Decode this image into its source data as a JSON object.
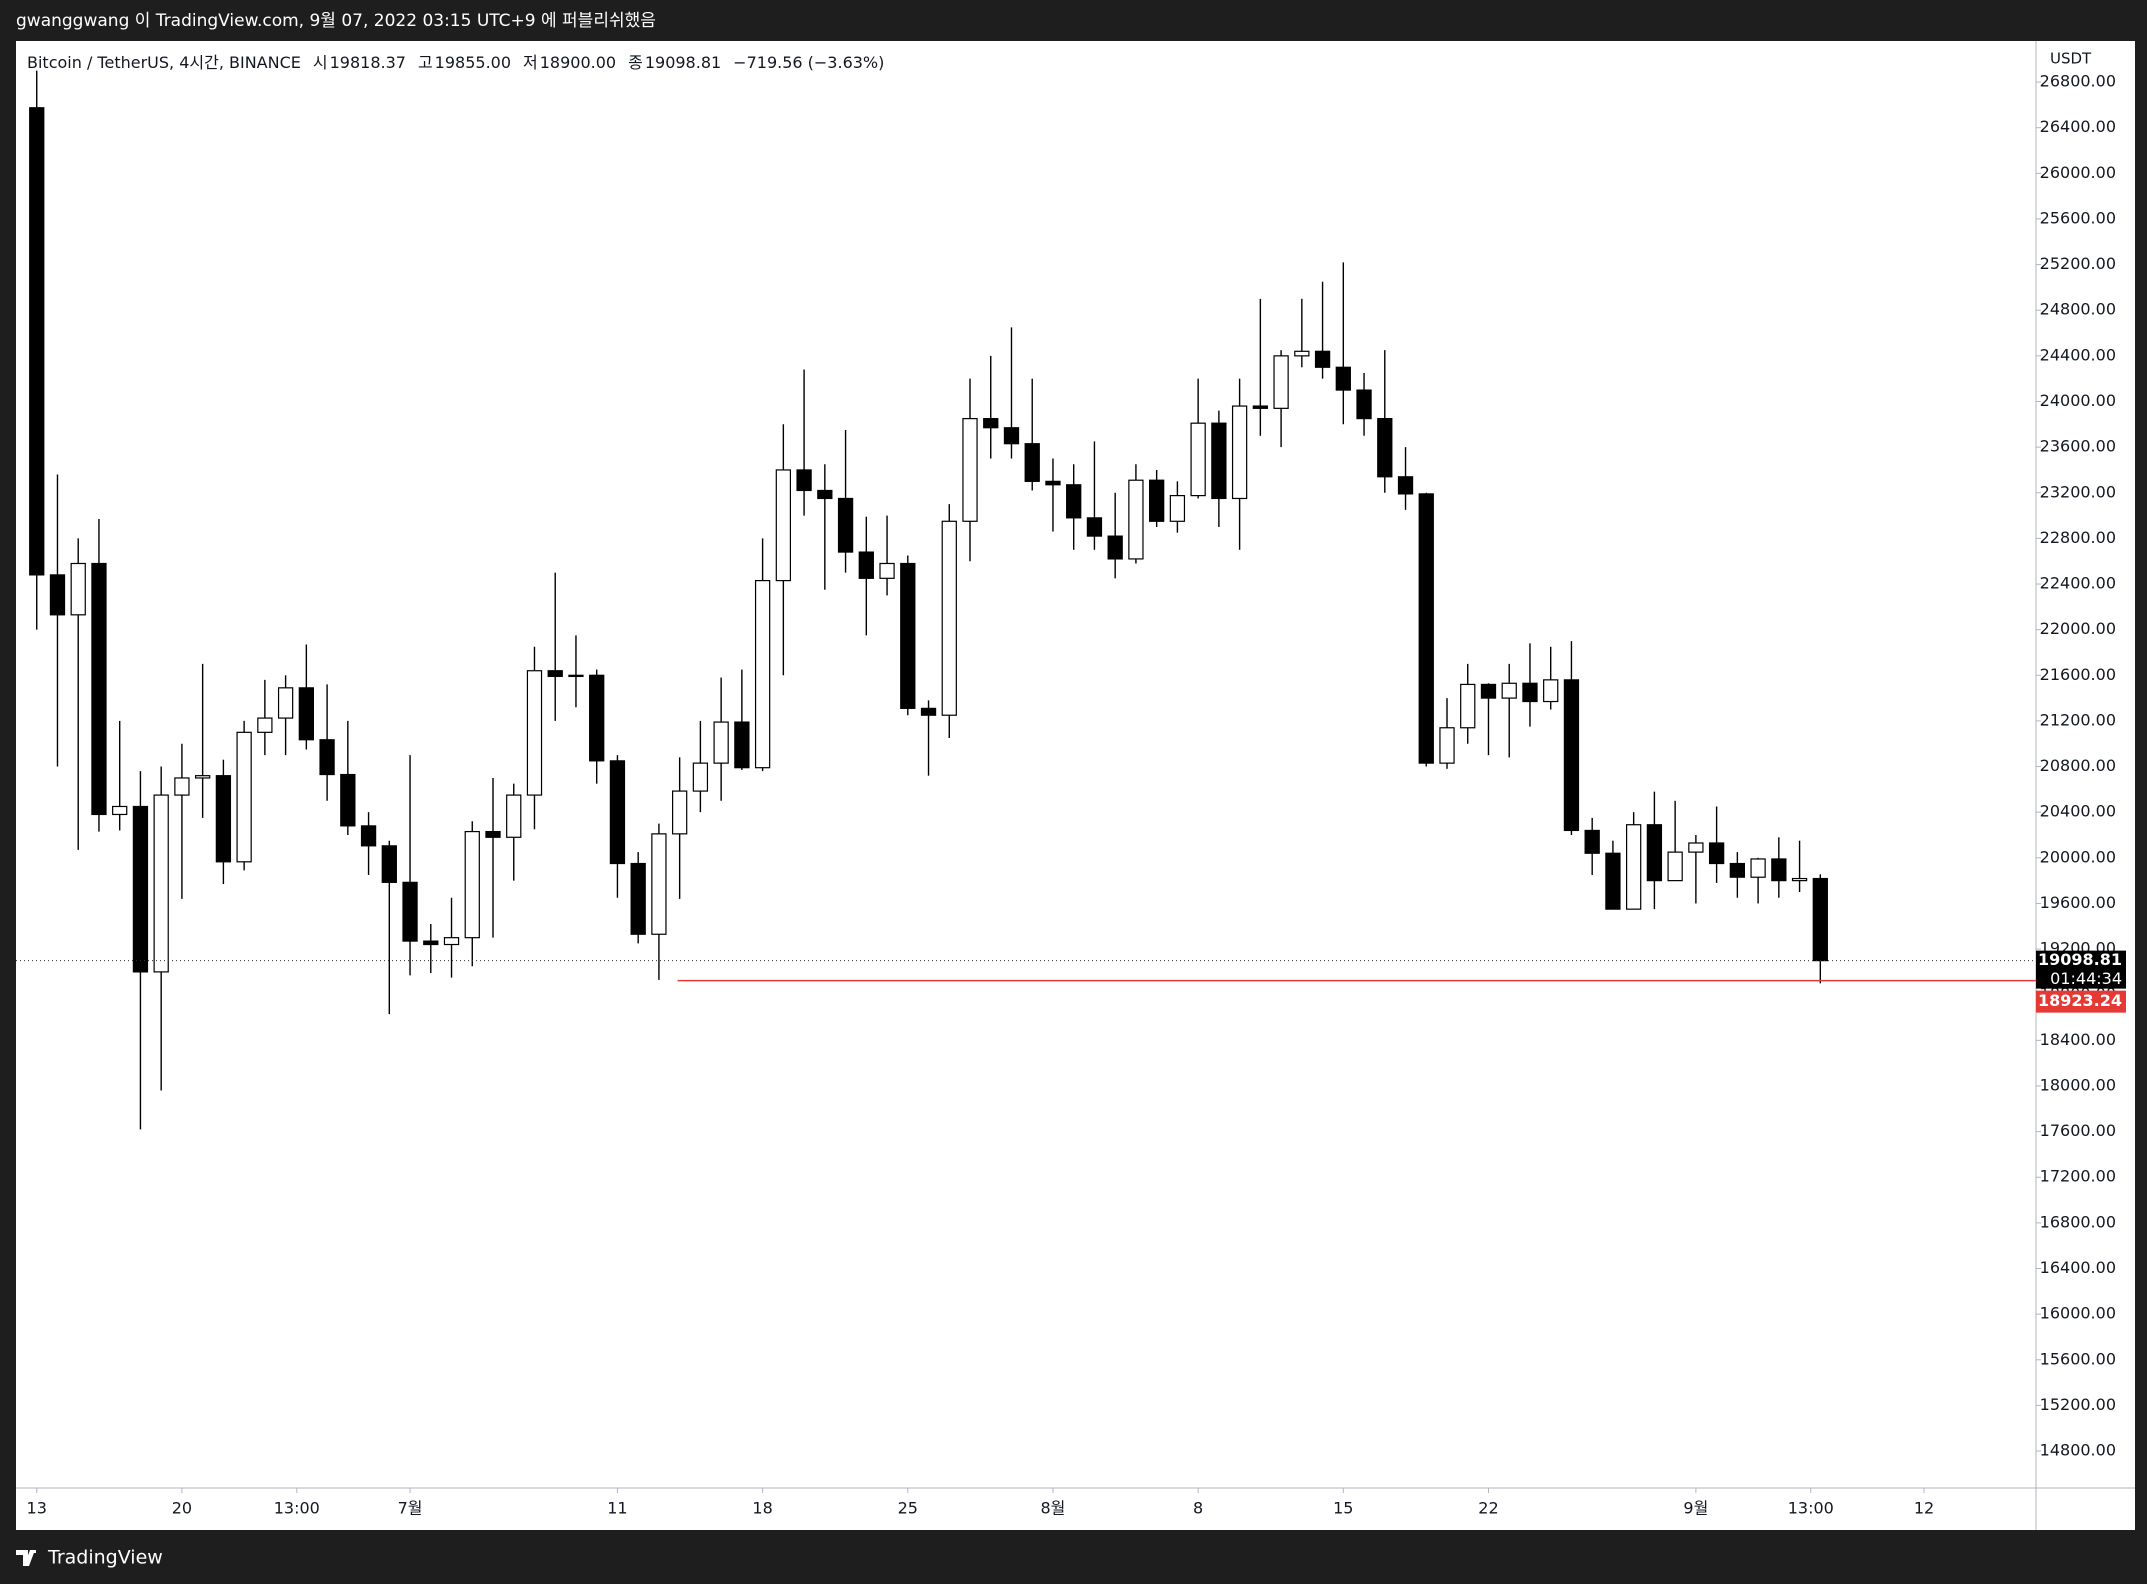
{
  "header": {
    "title": "gwanggwang 이 TradingView.com, 9월 07, 2022 03:15 UTC+9 에 퍼블리쉬했음"
  },
  "footer": {
    "brand": "TradingView"
  },
  "chart_data": {
    "type": "candlestick",
    "legend": [
      "Bitcoin / TetherUS, 4시간, BINANCE",
      "시",
      "19818.37",
      "고",
      "19855.00",
      "저",
      "18900.00",
      "종",
      "19098.81",
      "−719.56 (−3.63%)"
    ],
    "unit": "USDT",
    "countdown": "01:44:34",
    "up_color": "#ffffff",
    "down_color": "#000000",
    "wick_color": "#000000",
    "hline": {
      "value": 18923.24,
      "from_x": 30.9,
      "color": "#e53935"
    },
    "x": [
      0,
      1,
      2,
      3,
      4,
      5,
      6,
      7,
      8,
      9,
      10,
      11,
      12,
      13,
      14,
      15,
      16,
      17,
      18,
      19,
      20,
      21,
      22,
      23,
      24,
      25,
      26,
      27,
      28,
      29,
      30,
      31,
      32,
      33,
      34,
      35,
      36,
      37,
      38,
      39,
      40,
      41,
      42,
      43,
      44,
      45,
      46,
      47,
      48,
      49,
      50,
      51,
      52,
      53,
      54,
      55,
      56,
      57,
      58,
      59,
      60,
      61,
      62,
      63,
      64,
      65,
      66,
      67,
      68,
      69,
      70,
      71,
      72,
      73,
      74,
      75,
      76,
      77,
      78,
      79,
      80,
      81,
      82,
      83,
      84,
      85,
      86
    ],
    "open": [
      26575,
      22480,
      22130,
      22580,
      20380,
      20450,
      19000,
      20550,
      20700,
      20720,
      19965,
      21100,
      21225,
      21490,
      21035,
      20730,
      20280,
      20105,
      19785,
      19270,
      19240,
      19300,
      20230,
      20180,
      20550,
      21640,
      21590,
      21600,
      20850,
      19950,
      19330,
      20210,
      20585,
      20830,
      21190,
      20790,
      22430,
      23400,
      23220,
      23150,
      22680,
      22450,
      22580,
      21310,
      21250,
      22950,
      23850,
      23770,
      23630,
      23300,
      23270,
      22980,
      22820,
      22620,
      23310,
      22950,
      23175,
      23810,
      23150,
      23960,
      23940,
      24400,
      24440,
      24300,
      24100,
      23850,
      23340,
      23190,
      20830,
      21140,
      21520,
      21400,
      21530,
      21370,
      21560,
      20240,
      20040,
      19550,
      20290,
      19800,
      20050,
      20130,
      19950,
      19830,
      19990,
      19800,
      19818.37
    ],
    "high": [
      26900,
      23360,
      22800,
      22970,
      21200,
      20760,
      20800,
      21000,
      21700,
      20860,
      21200,
      21560,
      21600,
      21870,
      21520,
      21200,
      20400,
      20150,
      20900,
      19420,
      19650,
      20320,
      20700,
      20650,
      21850,
      22500,
      21950,
      21650,
      20900,
      20050,
      20300,
      20880,
      21200,
      21580,
      21650,
      22800,
      23800,
      24280,
      23450,
      23750,
      22990,
      23000,
      22650,
      21380,
      23100,
      24200,
      24400,
      24650,
      24200,
      23500,
      23450,
      23650,
      23200,
      23450,
      23400,
      23300,
      24200,
      23920,
      24200,
      24900,
      24450,
      24900,
      25050,
      25220,
      24250,
      24450,
      23600,
      23200,
      21400,
      21700,
      21530,
      21700,
      21880,
      21850,
      21900,
      20350,
      20150,
      20400,
      20580,
      20500,
      20200,
      20450,
      20050,
      20000,
      20180,
      20150,
      19855
    ],
    "low": [
      22000,
      20800,
      20070,
      20230,
      20240,
      17620,
      17960,
      19640,
      20350,
      19770,
      19890,
      20900,
      20900,
      20950,
      20500,
      20200,
      19850,
      18630,
      18970,
      18990,
      18950,
      19050,
      19300,
      19800,
      20250,
      21200,
      21320,
      20650,
      19650,
      19250,
      18930,
      19640,
      20400,
      20500,
      20770,
      20760,
      21600,
      23000,
      22350,
      22500,
      21950,
      22300,
      21250,
      20720,
      21050,
      22600,
      23500,
      23500,
      23220,
      22860,
      22700,
      22700,
      22450,
      22580,
      22900,
      22850,
      23150,
      22900,
      22700,
      23700,
      23600,
      24300,
      24200,
      23800,
      23700,
      23200,
      23050,
      20800,
      20780,
      21000,
      20900,
      20880,
      21150,
      21300,
      20200,
      19850,
      19550,
      19550,
      19550,
      19800,
      19600,
      19780,
      19650,
      19600,
      19650,
      19700,
      18900
    ],
    "close": [
      22480,
      22130,
      22580,
      20380,
      20450,
      19000,
      20550,
      20700,
      20720,
      19965,
      21100,
      21225,
      21490,
      21035,
      20730,
      20280,
      20105,
      19785,
      19270,
      19240,
      19300,
      20230,
      20180,
      20550,
      21640,
      21590,
      21600,
      20850,
      19950,
      19330,
      20210,
      20585,
      20830,
      21190,
      20790,
      22430,
      23400,
      23220,
      23150,
      22680,
      22450,
      22580,
      21310,
      21250,
      22950,
      23850,
      23770,
      23630,
      23300,
      23270,
      22980,
      22820,
      22620,
      23310,
      22950,
      23175,
      23810,
      23150,
      23960,
      23940,
      24400,
      24440,
      24300,
      24100,
      23850,
      23340,
      23190,
      20830,
      21140,
      21520,
      21400,
      21530,
      21370,
      21560,
      20240,
      20040,
      19550,
      20290,
      19800,
      20050,
      20130,
      19950,
      19830,
      19990,
      19800,
      19818.37,
      19098.81
    ],
    "xlim": [
      -1,
      96.4
    ],
    "ylim": [
      14476,
      27160
    ],
    "xticks": [
      {
        "value": 0,
        "label": "13"
      },
      {
        "value": 7,
        "label": "20"
      },
      {
        "value": 12.54,
        "label": "13:00"
      },
      {
        "value": 18,
        "label": "7월"
      },
      {
        "value": 28,
        "label": "11"
      },
      {
        "value": 35,
        "label": "18"
      },
      {
        "value": 42,
        "label": "25"
      },
      {
        "value": 49,
        "label": "8월"
      },
      {
        "value": 56,
        "label": "8"
      },
      {
        "value": 63,
        "label": "15"
      },
      {
        "value": 70,
        "label": "22"
      },
      {
        "value": 80,
        "label": "9월"
      },
      {
        "value": 85.54,
        "label": "13:00"
      },
      {
        "value": 91,
        "label": "12"
      }
    ],
    "yticks": [
      {
        "value": 14800,
        "label": "14800.00"
      },
      {
        "value": 15200,
        "label": "15200.00"
      },
      {
        "value": 15600,
        "label": "15600.00"
      },
      {
        "value": 16000,
        "label": "16000.00"
      },
      {
        "value": 16400,
        "label": "16400.00"
      },
      {
        "value": 16800,
        "label": "16800.00"
      },
      {
        "value": 17200,
        "label": "17200.00"
      },
      {
        "value": 17600,
        "label": "17600.00"
      },
      {
        "value": 18000,
        "label": "18000.00"
      },
      {
        "value": 18400,
        "label": "18400.00"
      },
      {
        "value": 18800,
        "label": "18800.00"
      },
      {
        "value": 19200,
        "label": "19200.00"
      },
      {
        "value": 19600,
        "label": "19600.00"
      },
      {
        "value": 20000,
        "label": "20000.00"
      },
      {
        "value": 20400,
        "label": "20400.00"
      },
      {
        "value": 20800,
        "label": "20800.00"
      },
      {
        "value": 21200,
        "label": "21200.00"
      },
      {
        "value": 21600,
        "label": "21600.00"
      },
      {
        "value": 22000,
        "label": "22000.00"
      },
      {
        "value": 22400,
        "label": "22400.00"
      },
      {
        "value": 22800,
        "label": "22800.00"
      },
      {
        "value": 23200,
        "label": "23200.00"
      },
      {
        "value": 23600,
        "label": "23600.00"
      },
      {
        "value": 24000,
        "label": "24000.00"
      },
      {
        "value": 24400,
        "label": "24400.00"
      },
      {
        "value": 24800,
        "label": "24800.00"
      },
      {
        "value": 25200,
        "label": "25200.00"
      },
      {
        "value": 25600,
        "label": "25600.00"
      },
      {
        "value": 26000,
        "label": "26000.00"
      },
      {
        "value": 26400,
        "label": "26400.00"
      },
      {
        "value": 26800,
        "label": "26800.00"
      }
    ]
  }
}
